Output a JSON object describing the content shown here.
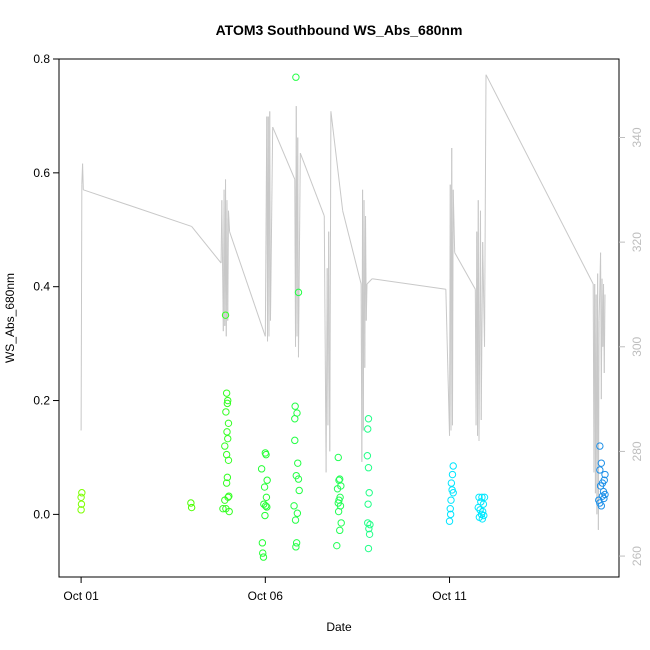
{
  "chart_data": {
    "type": "scatter",
    "title": "ATOM3 Southbound WS_Abs_680nm",
    "xlabel": "Date",
    "ylabel": "WS_Abs_680nm",
    "x_unit": "days since Oct 01",
    "xlim": [
      -0.6,
      14.6
    ],
    "ylim": [
      -0.11,
      0.8
    ],
    "y_ticks": [
      "0.0",
      "0.2",
      "0.4",
      "0.6",
      "0.8"
    ],
    "y_tick_values": [
      0.0,
      0.2,
      0.4,
      0.6,
      0.8
    ],
    "x_ticks": [
      "Oct 01",
      "Oct 06",
      "Oct 11"
    ],
    "x_tick_values": [
      0,
      5,
      10
    ],
    "right_axis": {
      "color": "#bebebe",
      "ylim": [
        256,
        355
      ],
      "ticks": [
        "260",
        "280",
        "300",
        "320",
        "340"
      ],
      "tick_values": [
        260,
        280,
        300,
        320,
        340
      ]
    },
    "grid": false,
    "legend": "none",
    "points": [
      {
        "x": 0.0,
        "y": 0.03,
        "color": "#7cff00"
      },
      {
        "x": 0.02,
        "y": 0.038,
        "color": "#7cff00"
      },
      {
        "x": 0.01,
        "y": 0.018,
        "color": "#7cff00"
      },
      {
        "x": 0.0,
        "y": 0.008,
        "color": "#7cff00"
      },
      {
        "x": 2.98,
        "y": 0.02,
        "color": "#4cff00"
      },
      {
        "x": 3.0,
        "y": 0.012,
        "color": "#4cff00"
      },
      {
        "x": 3.85,
        "y": 0.01,
        "color": "#33ff22"
      },
      {
        "x": 3.9,
        "y": 0.025,
        "color": "#33ff22"
      },
      {
        "x": 3.92,
        "y": 0.35,
        "color": "#33ff22"
      },
      {
        "x": 3.95,
        "y": 0.213,
        "color": "#33ff22"
      },
      {
        "x": 3.97,
        "y": 0.195,
        "color": "#33ff22"
      },
      {
        "x": 3.93,
        "y": 0.18,
        "color": "#33ff22"
      },
      {
        "x": 3.96,
        "y": 0.145,
        "color": "#33ff22"
      },
      {
        "x": 4.0,
        "y": 0.16,
        "color": "#33ff22"
      },
      {
        "x": 3.98,
        "y": 0.133,
        "color": "#33ff22"
      },
      {
        "x": 3.9,
        "y": 0.12,
        "color": "#33ff22"
      },
      {
        "x": 3.95,
        "y": 0.105,
        "color": "#33ff22"
      },
      {
        "x": 4.0,
        "y": 0.095,
        "color": "#33ff22"
      },
      {
        "x": 3.98,
        "y": 0.2,
        "color": "#33ff22"
      },
      {
        "x": 3.97,
        "y": 0.065,
        "color": "#33ff22"
      },
      {
        "x": 3.95,
        "y": 0.055,
        "color": "#33ff22"
      },
      {
        "x": 4.01,
        "y": 0.032,
        "color": "#33ff22"
      },
      {
        "x": 3.99,
        "y": 0.03,
        "color": "#33ff22"
      },
      {
        "x": 3.93,
        "y": 0.01,
        "color": "#33ff22"
      },
      {
        "x": 4.02,
        "y": 0.005,
        "color": "#33ff22"
      },
      {
        "x": 4.9,
        "y": 0.08,
        "color": "#22ff33"
      },
      {
        "x": 5.0,
        "y": 0.108,
        "color": "#22ff33"
      },
      {
        "x": 5.02,
        "y": 0.105,
        "color": "#22ff33"
      },
      {
        "x": 5.05,
        "y": 0.06,
        "color": "#22ff33"
      },
      {
        "x": 4.98,
        "y": 0.048,
        "color": "#22ff33"
      },
      {
        "x": 5.03,
        "y": 0.03,
        "color": "#22ff33"
      },
      {
        "x": 4.96,
        "y": 0.018,
        "color": "#22ff33"
      },
      {
        "x": 5.01,
        "y": 0.015,
        "color": "#22ff33"
      },
      {
        "x": 5.04,
        "y": 0.013,
        "color": "#22ff33"
      },
      {
        "x": 4.99,
        "y": -0.002,
        "color": "#22ff33"
      },
      {
        "x": 4.92,
        "y": -0.05,
        "color": "#22ff33"
      },
      {
        "x": 4.93,
        "y": -0.068,
        "color": "#22ff33"
      },
      {
        "x": 4.95,
        "y": -0.075,
        "color": "#22ff33"
      },
      {
        "x": 5.83,
        "y": 0.768,
        "color": "#22ff44"
      },
      {
        "x": 5.9,
        "y": 0.39,
        "color": "#22ff44"
      },
      {
        "x": 5.81,
        "y": 0.19,
        "color": "#22ff44"
      },
      {
        "x": 5.86,
        "y": 0.178,
        "color": "#22ff44"
      },
      {
        "x": 5.8,
        "y": 0.168,
        "color": "#22ff44"
      },
      {
        "x": 5.8,
        "y": 0.13,
        "color": "#22ff44"
      },
      {
        "x": 5.88,
        "y": 0.09,
        "color": "#22ff44"
      },
      {
        "x": 5.84,
        "y": 0.068,
        "color": "#22ff44"
      },
      {
        "x": 5.9,
        "y": 0.062,
        "color": "#22ff44"
      },
      {
        "x": 5.92,
        "y": 0.042,
        "color": "#22ff44"
      },
      {
        "x": 5.78,
        "y": 0.015,
        "color": "#22ff44"
      },
      {
        "x": 5.87,
        "y": 0.002,
        "color": "#22ff44"
      },
      {
        "x": 5.82,
        "y": -0.01,
        "color": "#22ff44"
      },
      {
        "x": 5.85,
        "y": -0.05,
        "color": "#22ff44"
      },
      {
        "x": 5.83,
        "y": -0.057,
        "color": "#22ff44"
      },
      {
        "x": 6.98,
        "y": 0.1,
        "color": "#22ff55"
      },
      {
        "x": 7.02,
        "y": 0.062,
        "color": "#22ff55"
      },
      {
        "x": 7.0,
        "y": 0.06,
        "color": "#22ff55"
      },
      {
        "x": 7.05,
        "y": 0.05,
        "color": "#22ff55"
      },
      {
        "x": 6.96,
        "y": 0.045,
        "color": "#22ff55"
      },
      {
        "x": 7.03,
        "y": 0.03,
        "color": "#22ff55"
      },
      {
        "x": 7.0,
        "y": 0.025,
        "color": "#22ff55"
      },
      {
        "x": 6.98,
        "y": 0.02,
        "color": "#22ff55"
      },
      {
        "x": 7.04,
        "y": 0.015,
        "color": "#22ff55"
      },
      {
        "x": 6.99,
        "y": 0.005,
        "color": "#22ff55"
      },
      {
        "x": 7.06,
        "y": -0.015,
        "color": "#22ff55"
      },
      {
        "x": 7.02,
        "y": -0.028,
        "color": "#22ff55"
      },
      {
        "x": 6.94,
        "y": -0.055,
        "color": "#22ff55"
      },
      {
        "x": 7.8,
        "y": 0.168,
        "color": "#22ff88"
      },
      {
        "x": 7.78,
        "y": 0.15,
        "color": "#22ff88"
      },
      {
        "x": 7.77,
        "y": 0.103,
        "color": "#22ff88"
      },
      {
        "x": 7.8,
        "y": 0.082,
        "color": "#22ff88"
      },
      {
        "x": 7.82,
        "y": 0.038,
        "color": "#22ff88"
      },
      {
        "x": 7.79,
        "y": 0.018,
        "color": "#22ff88"
      },
      {
        "x": 7.78,
        "y": -0.015,
        "color": "#22ff88"
      },
      {
        "x": 7.84,
        "y": -0.018,
        "color": "#22ff88"
      },
      {
        "x": 7.81,
        "y": -0.025,
        "color": "#22ff88"
      },
      {
        "x": 7.83,
        "y": -0.035,
        "color": "#22ff88"
      },
      {
        "x": 7.8,
        "y": -0.06,
        "color": "#22ff88"
      },
      {
        "x": 10.1,
        "y": 0.085,
        "color": "#00e5ff"
      },
      {
        "x": 10.08,
        "y": 0.07,
        "color": "#00e5ff"
      },
      {
        "x": 10.05,
        "y": 0.055,
        "color": "#00e5ff"
      },
      {
        "x": 10.07,
        "y": 0.043,
        "color": "#00e5ff"
      },
      {
        "x": 10.1,
        "y": 0.038,
        "color": "#00e5ff"
      },
      {
        "x": 10.04,
        "y": 0.025,
        "color": "#00e5ff"
      },
      {
        "x": 10.02,
        "y": 0.01,
        "color": "#00e5ff"
      },
      {
        "x": 10.03,
        "y": 0.0,
        "color": "#00e5ff"
      },
      {
        "x": 10.0,
        "y": -0.012,
        "color": "#00e5ff"
      },
      {
        "x": 10.8,
        "y": 0.03,
        "color": "#00e8ff"
      },
      {
        "x": 10.88,
        "y": 0.03,
        "color": "#00e8ff"
      },
      {
        "x": 10.95,
        "y": 0.03,
        "color": "#00e8ff"
      },
      {
        "x": 10.85,
        "y": 0.022,
        "color": "#00e8ff"
      },
      {
        "x": 10.92,
        "y": 0.018,
        "color": "#00e8ff"
      },
      {
        "x": 10.78,
        "y": 0.012,
        "color": "#00e8ff"
      },
      {
        "x": 10.83,
        "y": 0.008,
        "color": "#00e8ff"
      },
      {
        "x": 10.9,
        "y": 0.005,
        "color": "#00e8ff"
      },
      {
        "x": 10.87,
        "y": 0.0,
        "color": "#00e8ff"
      },
      {
        "x": 10.93,
        "y": -0.002,
        "color": "#00e8ff"
      },
      {
        "x": 10.81,
        "y": -0.005,
        "color": "#00e8ff"
      },
      {
        "x": 10.89,
        "y": -0.008,
        "color": "#00e8ff"
      },
      {
        "x": 14.08,
        "y": 0.12,
        "color": "#1e90e8"
      },
      {
        "x": 14.12,
        "y": 0.09,
        "color": "#1e90e8"
      },
      {
        "x": 14.08,
        "y": 0.078,
        "color": "#1e90e8"
      },
      {
        "x": 14.22,
        "y": 0.07,
        "color": "#1e90e8"
      },
      {
        "x": 14.2,
        "y": 0.06,
        "color": "#1e90e8"
      },
      {
        "x": 14.15,
        "y": 0.055,
        "color": "#1e90e8"
      },
      {
        "x": 14.1,
        "y": 0.05,
        "color": "#1e90e8"
      },
      {
        "x": 14.18,
        "y": 0.04,
        "color": "#1e90e8"
      },
      {
        "x": 14.22,
        "y": 0.035,
        "color": "#1e90e8"
      },
      {
        "x": 14.15,
        "y": 0.032,
        "color": "#1e90e8"
      },
      {
        "x": 14.19,
        "y": 0.028,
        "color": "#1e90e8"
      },
      {
        "x": 14.05,
        "y": 0.025,
        "color": "#1e90e8"
      },
      {
        "x": 14.08,
        "y": 0.02,
        "color": "#1e90e8"
      },
      {
        "x": 14.12,
        "y": 0.015,
        "color": "#1e90e8"
      }
    ],
    "secondary_series": {
      "color": "#c8c8c8",
      "axis": "right",
      "points": [
        [
          0.0,
          284
        ],
        [
          0.02,
          331
        ],
        [
          0.04,
          335
        ],
        [
          0.06,
          330
        ],
        [
          3.0,
          323
        ],
        [
          3.8,
          316
        ],
        [
          3.82,
          328
        ],
        [
          3.86,
          303
        ],
        [
          3.88,
          330
        ],
        [
          3.9,
          304
        ],
        [
          3.92,
          332
        ],
        [
          3.94,
          302
        ],
        [
          3.96,
          328
        ],
        [
          3.98,
          305
        ],
        [
          4.0,
          326
        ],
        [
          4.03,
          322
        ],
        [
          5.0,
          302
        ],
        [
          5.04,
          344
        ],
        [
          5.06,
          301
        ],
        [
          5.08,
          344
        ],
        [
          5.1,
          302
        ],
        [
          5.12,
          345
        ],
        [
          5.14,
          305
        ],
        [
          5.2,
          342
        ],
        [
          5.8,
          332
        ],
        [
          5.82,
          300
        ],
        [
          5.84,
          346
        ],
        [
          5.86,
          302
        ],
        [
          5.88,
          340
        ],
        [
          5.9,
          298
        ],
        [
          5.95,
          337
        ],
        [
          6.6,
          325
        ],
        [
          6.65,
          276
        ],
        [
          6.68,
          315
        ],
        [
          6.7,
          285
        ],
        [
          6.72,
          322
        ],
        [
          6.75,
          280
        ],
        [
          6.78,
          345
        ],
        [
          7.1,
          326
        ],
        [
          7.6,
          312
        ],
        [
          7.62,
          278
        ],
        [
          7.64,
          330
        ],
        [
          7.66,
          284
        ],
        [
          7.68,
          328
        ],
        [
          7.7,
          296
        ],
        [
          7.72,
          325
        ],
        [
          7.74,
          305
        ],
        [
          7.76,
          312
        ],
        [
          7.9,
          313
        ],
        [
          9.9,
          311
        ],
        [
          10.0,
          283
        ],
        [
          10.02,
          331
        ],
        [
          10.04,
          284
        ],
        [
          10.06,
          338
        ],
        [
          10.08,
          285
        ],
        [
          10.1,
          330
        ],
        [
          10.14,
          318
        ],
        [
          10.7,
          311
        ],
        [
          10.72,
          285
        ],
        [
          10.74,
          322
        ],
        [
          10.76,
          283
        ],
        [
          10.78,
          328
        ],
        [
          10.8,
          282
        ],
        [
          10.84,
          326
        ],
        [
          10.86,
          286
        ],
        [
          10.9,
          320
        ],
        [
          10.95,
          300
        ],
        [
          10.99,
          352
        ],
        [
          13.9,
          312
        ],
        [
          13.92,
          276
        ],
        [
          13.94,
          312
        ],
        [
          13.96,
          272
        ],
        [
          13.98,
          310
        ],
        [
          14.0,
          268
        ],
        [
          14.02,
          314
        ],
        [
          14.04,
          265
        ],
        [
          14.06,
          305
        ],
        [
          14.1,
          318
        ],
        [
          14.12,
          290
        ],
        [
          14.14,
          313
        ],
        [
          14.16,
          300
        ],
        [
          14.18,
          312
        ],
        [
          14.2,
          295
        ],
        [
          14.22,
          310
        ]
      ]
    }
  }
}
